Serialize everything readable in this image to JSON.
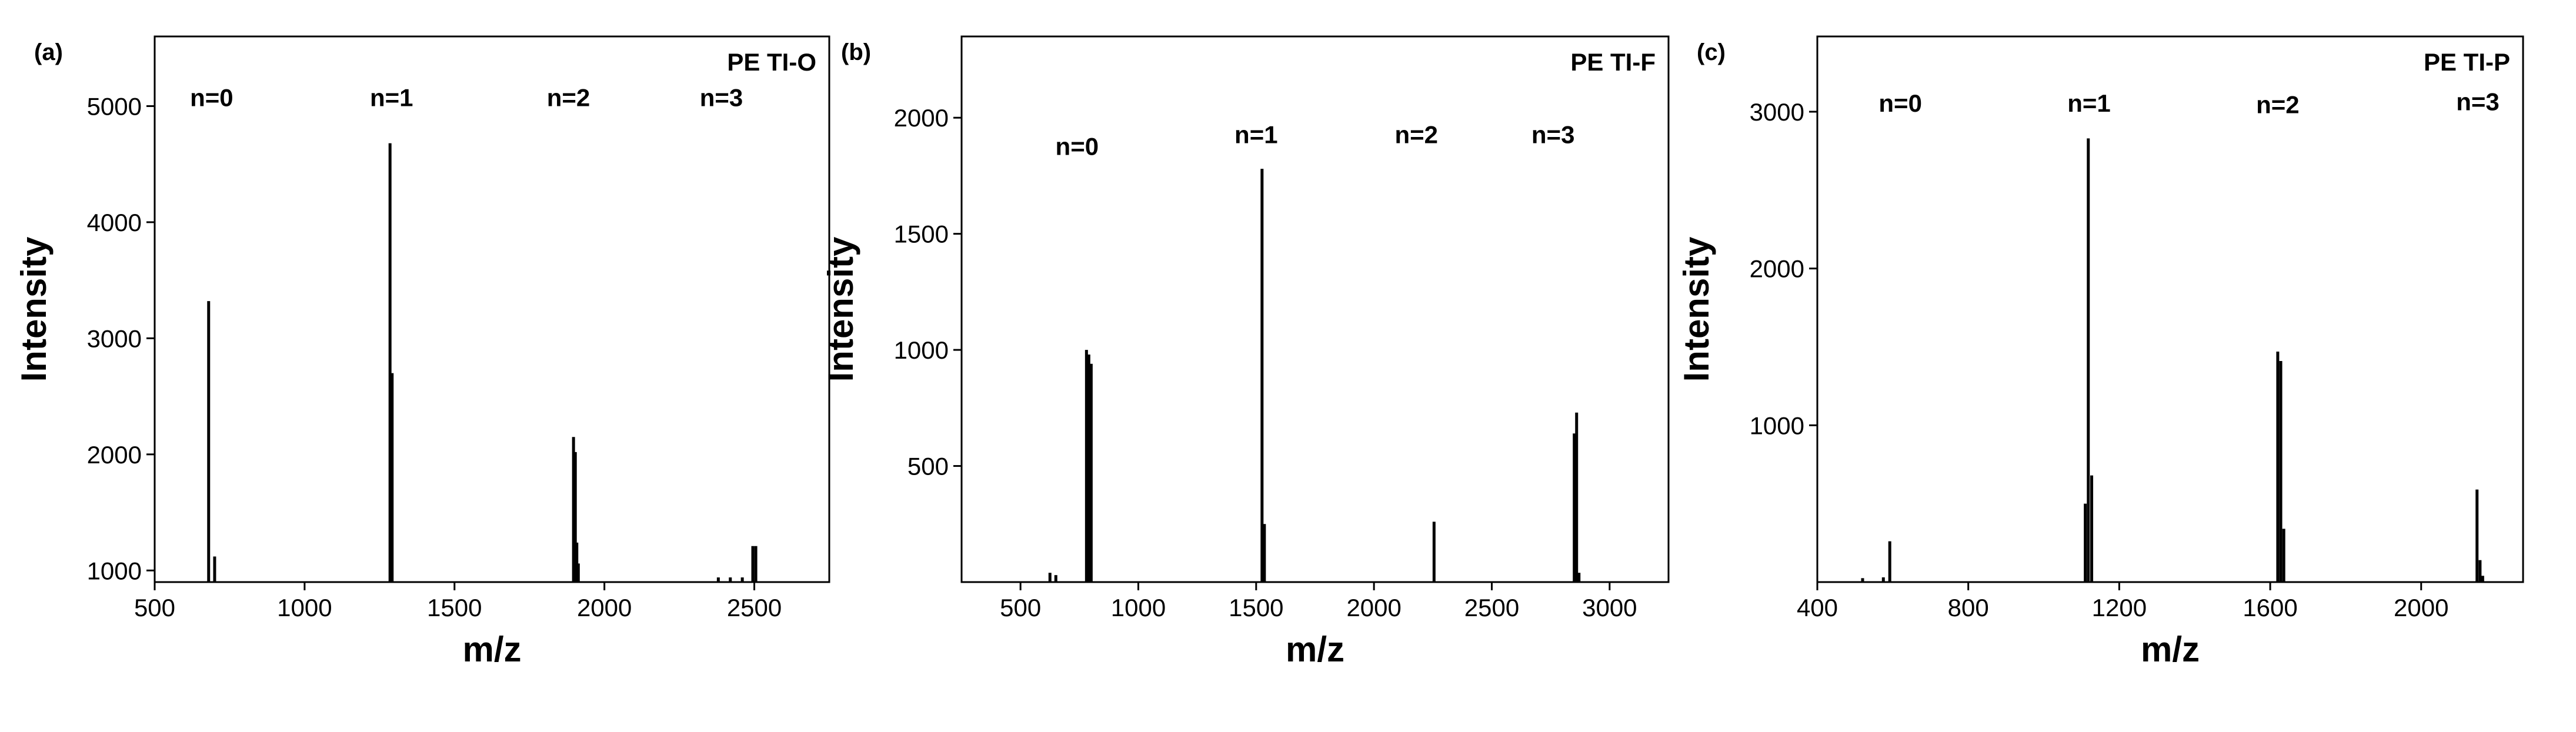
{
  "figure": {
    "panels_description": "Mass spectra panels (a), (b), (c)"
  },
  "chart_data": [
    {
      "type": "bar",
      "panel_label": "(a)",
      "title": "PE TI-O",
      "xlabel": "m/z",
      "ylabel": "Intensity",
      "xlim": [
        500,
        2750
      ],
      "ylim": [
        900,
        5600
      ],
      "xticks": [
        500,
        1000,
        1500,
        2000,
        2500
      ],
      "yticks": [
        1000,
        2000,
        3000,
        4000,
        5000
      ],
      "annotations": [
        {
          "text": "n=0",
          "x": 690,
          "y": 5000
        },
        {
          "text": "n=1",
          "x": 1290,
          "y": 5000
        },
        {
          "text": "n=2",
          "x": 1880,
          "y": 5000
        },
        {
          "text": "n=3",
          "x": 2390,
          "y": 5000
        }
      ],
      "peaks": [
        {
          "x": 680,
          "y": 3320
        },
        {
          "x": 700,
          "y": 1120
        },
        {
          "x": 1285,
          "y": 4680
        },
        {
          "x": 1292,
          "y": 2700
        },
        {
          "x": 1897,
          "y": 2150
        },
        {
          "x": 1903,
          "y": 2020
        },
        {
          "x": 1908,
          "y": 1240
        },
        {
          "x": 1913,
          "y": 1060
        },
        {
          "x": 2380,
          "y": 940
        },
        {
          "x": 2420,
          "y": 940
        },
        {
          "x": 2460,
          "y": 940
        },
        {
          "x": 2495,
          "y": 1210
        },
        {
          "x": 2505,
          "y": 1210
        }
      ]
    },
    {
      "type": "bar",
      "panel_label": "(b)",
      "title": "PE TI-F",
      "xlabel": "m/z",
      "ylabel": "Intensity",
      "xlim": [
        250,
        3250
      ],
      "ylim": [
        0,
        2350
      ],
      "xticks": [
        500,
        1000,
        1500,
        2000,
        2500,
        3000
      ],
      "yticks": [
        500,
        1000,
        1500,
        2000
      ],
      "annotations": [
        {
          "text": "n=0",
          "x": 740,
          "y": 1840
        },
        {
          "text": "n=1",
          "x": 1500,
          "y": 1890
        },
        {
          "text": "n=2",
          "x": 2180,
          "y": 1890
        },
        {
          "text": "n=3",
          "x": 2760,
          "y": 1890
        }
      ],
      "peaks": [
        {
          "x": 625,
          "y": 40
        },
        {
          "x": 650,
          "y": 30
        },
        {
          "x": 780,
          "y": 1000
        },
        {
          "x": 790,
          "y": 980
        },
        {
          "x": 800,
          "y": 940
        },
        {
          "x": 1525,
          "y": 1780
        },
        {
          "x": 1535,
          "y": 250
        },
        {
          "x": 2255,
          "y": 260
        },
        {
          "x": 2850,
          "y": 640
        },
        {
          "x": 2860,
          "y": 730
        },
        {
          "x": 2870,
          "y": 40
        }
      ]
    },
    {
      "type": "bar",
      "panel_label": "(c)",
      "title": "PE TI-P",
      "xlabel": "m/z",
      "ylabel": "Intensity",
      "xlim": [
        400,
        2270
      ],
      "ylim": [
        0,
        3480
      ],
      "xticks": [
        400,
        800,
        1200,
        1600,
        2000
      ],
      "yticks": [
        1000,
        2000,
        3000
      ],
      "annotations": [
        {
          "text": "n=0",
          "x": 620,
          "y": 3000
        },
        {
          "text": "n=1",
          "x": 1120,
          "y": 3000
        },
        {
          "text": "n=2",
          "x": 1620,
          "y": 2990
        },
        {
          "text": "n=3",
          "x": 2150,
          "y": 3010
        }
      ],
      "peaks": [
        {
          "x": 520,
          "y": 25
        },
        {
          "x": 575,
          "y": 30
        },
        {
          "x": 592,
          "y": 260
        },
        {
          "x": 1110,
          "y": 500
        },
        {
          "x": 1118,
          "y": 2830
        },
        {
          "x": 1127,
          "y": 680
        },
        {
          "x": 1620,
          "y": 1470
        },
        {
          "x": 1628,
          "y": 1410
        },
        {
          "x": 1636,
          "y": 340
        },
        {
          "x": 2148,
          "y": 590
        },
        {
          "x": 2156,
          "y": 140
        },
        {
          "x": 2163,
          "y": 40
        }
      ]
    }
  ]
}
